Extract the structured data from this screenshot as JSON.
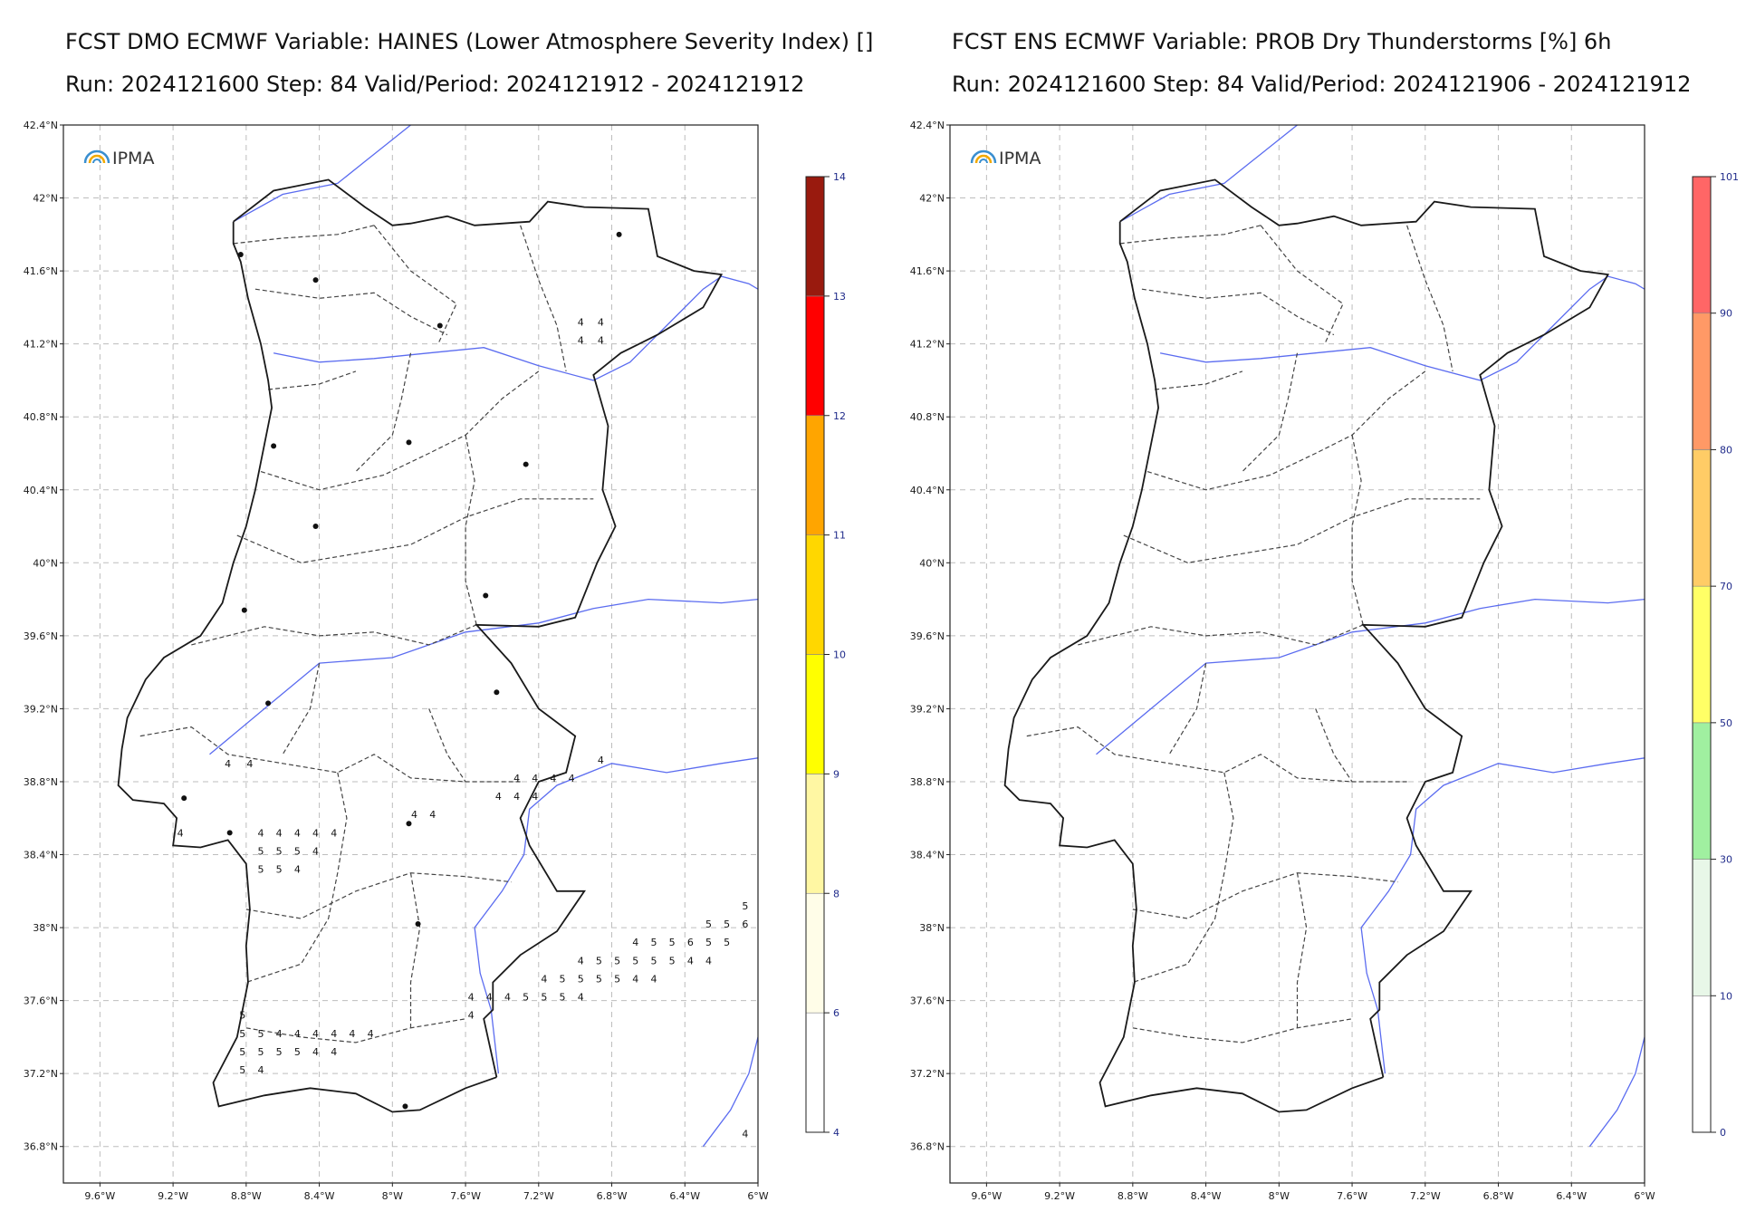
{
  "colors": {
    "coast": "#1a1a1a",
    "border": "#1a1a1a",
    "district": "#444444",
    "river": "#5b6cf0",
    "grid": "#bdbdbd",
    "tick_label": "#1a1a1a",
    "cbar_label": "#1f2a8a",
    "ipma_arc": "#3a8fd0"
  },
  "left_panel": {
    "title1": "FCST DMO ECMWF Variable: HAINES (Lower Atmosphere Severity Index) []",
    "title2": "Run: 2024121600 Step: 84 Valid/Period: 2024121912 - 2024121912",
    "logo": "IPMA",
    "lat_labels": [
      "42.4°N",
      "42°N",
      "41.6°N",
      "41.2°N",
      "40.8°N",
      "40.4°N",
      "40°N",
      "39.6°N",
      "39.2°N",
      "38.8°N",
      "38.4°N",
      "38°N",
      "37.6°N",
      "37.2°N",
      "36.8°N"
    ],
    "lon_labels": [
      "9.6°W",
      "9.2°W",
      "8.8°W",
      "8.4°W",
      "8°W",
      "7.6°W",
      "7.2°W",
      "6.8°W",
      "6.4°W",
      "6°W"
    ],
    "colorbar": {
      "ticks": [
        "4",
        "6",
        "8",
        "9",
        "10",
        "11",
        "12",
        "13",
        "14"
      ],
      "colors": [
        "#ffffff",
        "#fffde8",
        "#fff7a3",
        "#ffff00",
        "#ffd700",
        "#ffa500",
        "#ff0000",
        "#991a0e"
      ]
    },
    "values": [
      {
        "lat": 41.32,
        "lon": -6.97,
        "v": "4"
      },
      {
        "lat": 41.32,
        "lon": -6.86,
        "v": "4"
      },
      {
        "lat": 41.22,
        "lon": -6.97,
        "v": "4"
      },
      {
        "lat": 41.22,
        "lon": -6.86,
        "v": "4"
      },
      {
        "lat": 38.9,
        "lon": -8.9,
        "v": "4"
      },
      {
        "lat": 38.9,
        "lon": -8.78,
        "v": "4"
      },
      {
        "lat": 38.92,
        "lon": -6.86,
        "v": "4"
      },
      {
        "lat": 38.82,
        "lon": -7.32,
        "v": "4"
      },
      {
        "lat": 38.82,
        "lon": -7.22,
        "v": "4"
      },
      {
        "lat": 38.82,
        "lon": -7.12,
        "v": "4"
      },
      {
        "lat": 38.82,
        "lon": -7.02,
        "v": "4"
      },
      {
        "lat": 38.72,
        "lon": -7.42,
        "v": "4"
      },
      {
        "lat": 38.72,
        "lon": -7.32,
        "v": "4"
      },
      {
        "lat": 38.72,
        "lon": -7.22,
        "v": "4"
      },
      {
        "lat": 38.62,
        "lon": -7.88,
        "v": "4"
      },
      {
        "lat": 38.62,
        "lon": -7.78,
        "v": "4"
      },
      {
        "lat": 38.52,
        "lon": -9.16,
        "v": "4"
      },
      {
        "lat": 38.52,
        "lon": -8.72,
        "v": "4"
      },
      {
        "lat": 38.52,
        "lon": -8.62,
        "v": "4"
      },
      {
        "lat": 38.52,
        "lon": -8.52,
        "v": "4"
      },
      {
        "lat": 38.52,
        "lon": -8.42,
        "v": "4"
      },
      {
        "lat": 38.52,
        "lon": -8.32,
        "v": "4"
      },
      {
        "lat": 38.42,
        "lon": -8.72,
        "v": "5"
      },
      {
        "lat": 38.42,
        "lon": -8.62,
        "v": "5"
      },
      {
        "lat": 38.42,
        "lon": -8.52,
        "v": "5"
      },
      {
        "lat": 38.42,
        "lon": -8.42,
        "v": "4"
      },
      {
        "lat": 38.32,
        "lon": -8.72,
        "v": "5"
      },
      {
        "lat": 38.32,
        "lon": -8.62,
        "v": "5"
      },
      {
        "lat": 38.32,
        "lon": -8.52,
        "v": "4"
      },
      {
        "lat": 38.12,
        "lon": -6.07,
        "v": "5"
      },
      {
        "lat": 38.02,
        "lon": -6.27,
        "v": "5"
      },
      {
        "lat": 38.02,
        "lon": -6.17,
        "v": "5"
      },
      {
        "lat": 38.02,
        "lon": -6.07,
        "v": "6"
      },
      {
        "lat": 37.92,
        "lon": -6.67,
        "v": "4"
      },
      {
        "lat": 37.92,
        "lon": -6.57,
        "v": "5"
      },
      {
        "lat": 37.92,
        "lon": -6.47,
        "v": "5"
      },
      {
        "lat": 37.92,
        "lon": -6.37,
        "v": "6"
      },
      {
        "lat": 37.92,
        "lon": -6.27,
        "v": "5"
      },
      {
        "lat": 37.92,
        "lon": -6.17,
        "v": "5"
      },
      {
        "lat": 37.82,
        "lon": -6.97,
        "v": "4"
      },
      {
        "lat": 37.82,
        "lon": -6.87,
        "v": "5"
      },
      {
        "lat": 37.82,
        "lon": -6.77,
        "v": "5"
      },
      {
        "lat": 37.82,
        "lon": -6.67,
        "v": "5"
      },
      {
        "lat": 37.82,
        "lon": -6.57,
        "v": "5"
      },
      {
        "lat": 37.82,
        "lon": -6.47,
        "v": "5"
      },
      {
        "lat": 37.82,
        "lon": -6.37,
        "v": "4"
      },
      {
        "lat": 37.82,
        "lon": -6.27,
        "v": "4"
      },
      {
        "lat": 37.72,
        "lon": -7.17,
        "v": "4"
      },
      {
        "lat": 37.72,
        "lon": -7.07,
        "v": "5"
      },
      {
        "lat": 37.72,
        "lon": -6.97,
        "v": "5"
      },
      {
        "lat": 37.72,
        "lon": -6.87,
        "v": "5"
      },
      {
        "lat": 37.72,
        "lon": -6.77,
        "v": "5"
      },
      {
        "lat": 37.72,
        "lon": -6.67,
        "v": "4"
      },
      {
        "lat": 37.72,
        "lon": -6.57,
        "v": "4"
      },
      {
        "lat": 37.62,
        "lon": -7.57,
        "v": "4"
      },
      {
        "lat": 37.62,
        "lon": -7.47,
        "v": "4"
      },
      {
        "lat": 37.62,
        "lon": -7.37,
        "v": "4"
      },
      {
        "lat": 37.62,
        "lon": -7.27,
        "v": "5"
      },
      {
        "lat": 37.62,
        "lon": -7.17,
        "v": "5"
      },
      {
        "lat": 37.62,
        "lon": -7.07,
        "v": "5"
      },
      {
        "lat": 37.62,
        "lon": -6.97,
        "v": "4"
      },
      {
        "lat": 37.52,
        "lon": -7.57,
        "v": "4"
      },
      {
        "lat": 37.52,
        "lon": -8.82,
        "v": "5"
      },
      {
        "lat": 37.42,
        "lon": -8.82,
        "v": "5"
      },
      {
        "lat": 37.42,
        "lon": -8.72,
        "v": "5"
      },
      {
        "lat": 37.42,
        "lon": -8.62,
        "v": "4"
      },
      {
        "lat": 37.42,
        "lon": -8.52,
        "v": "4"
      },
      {
        "lat": 37.42,
        "lon": -8.42,
        "v": "4"
      },
      {
        "lat": 37.42,
        "lon": -8.32,
        "v": "4"
      },
      {
        "lat": 37.42,
        "lon": -8.22,
        "v": "4"
      },
      {
        "lat": 37.42,
        "lon": -8.12,
        "v": "4"
      },
      {
        "lat": 37.32,
        "lon": -8.82,
        "v": "5"
      },
      {
        "lat": 37.32,
        "lon": -8.72,
        "v": "5"
      },
      {
        "lat": 37.32,
        "lon": -8.62,
        "v": "5"
      },
      {
        "lat": 37.32,
        "lon": -8.52,
        "v": "5"
      },
      {
        "lat": 37.32,
        "lon": -8.42,
        "v": "4"
      },
      {
        "lat": 37.32,
        "lon": -8.32,
        "v": "4"
      },
      {
        "lat": 37.22,
        "lon": -8.82,
        "v": "5"
      },
      {
        "lat": 37.22,
        "lon": -8.72,
        "v": "4"
      },
      {
        "lat": 36.87,
        "lon": -6.07,
        "v": "4"
      }
    ]
  },
  "right_panel": {
    "title1": "FCST ENS ECMWF Variable: PROB Dry Thunderstorms [%] 6h",
    "title2": "Run: 2024121600 Step: 84 Valid/Period: 2024121906 - 2024121912",
    "logo": "IPMA",
    "lat_labels": [
      "42.4°N",
      "42°N",
      "41.6°N",
      "41.2°N",
      "40.8°N",
      "40.4°N",
      "40°N",
      "39.6°N",
      "39.2°N",
      "38.8°N",
      "38.4°N",
      "38°N",
      "37.6°N",
      "37.2°N",
      "36.8°N"
    ],
    "lon_labels": [
      "9.6°W",
      "9.2°W",
      "8.8°W",
      "8.4°W",
      "8°W",
      "7.6°W",
      "7.2°W",
      "6.8°W",
      "6.4°W",
      "6°W"
    ],
    "colorbar": {
      "ticks": [
        "0",
        "10",
        "30",
        "50",
        "70",
        "80",
        "90",
        "101"
      ],
      "colors": [
        "#ffffff",
        "#e8f7e8",
        "#a0f0a0",
        "#ffff66",
        "#ffcc66",
        "#ff9966",
        "#ff6666"
      ]
    }
  },
  "cities": [
    {
      "lat": 41.69,
      "lon": -8.83
    },
    {
      "lat": 41.8,
      "lon": -6.76
    },
    {
      "lat": 41.55,
      "lon": -8.42
    },
    {
      "lat": 41.3,
      "lon": -7.74
    },
    {
      "lat": 40.66,
      "lon": -7.91
    },
    {
      "lat": 40.64,
      "lon": -8.65
    },
    {
      "lat": 40.54,
      "lon": -7.27
    },
    {
      "lat": 40.2,
      "lon": -8.42
    },
    {
      "lat": 39.82,
      "lon": -7.49
    },
    {
      "lat": 39.74,
      "lon": -8.81
    },
    {
      "lat": 39.29,
      "lon": -7.43
    },
    {
      "lat": 39.23,
      "lon": -8.68
    },
    {
      "lat": 38.71,
      "lon": -9.14
    },
    {
      "lat": 38.52,
      "lon": -8.89
    },
    {
      "lat": 38.57,
      "lon": -7.91
    },
    {
      "lat": 38.02,
      "lon": -7.86
    },
    {
      "lat": 37.02,
      "lon": -7.93
    }
  ]
}
